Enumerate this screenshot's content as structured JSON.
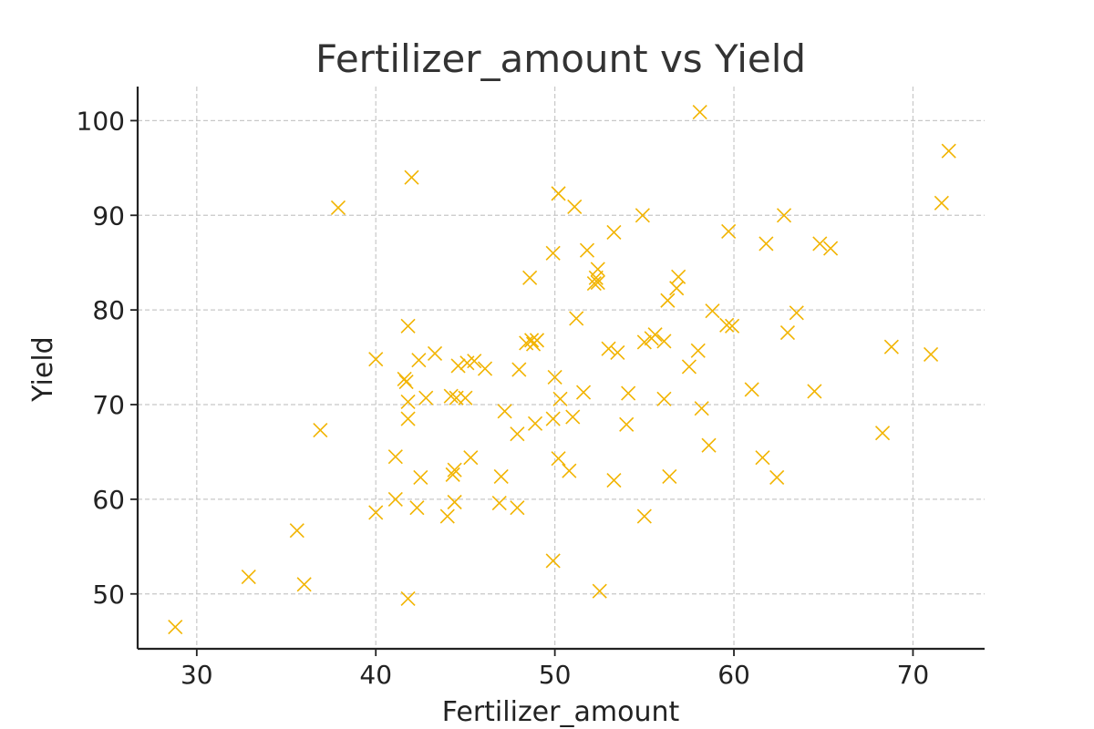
{
  "chart_data": {
    "type": "scatter",
    "title": "Fertilizer_amount vs Yield",
    "xlabel": "Fertilizer_amount",
    "ylabel": "Yield",
    "xlim": [
      26.7,
      74.0
    ],
    "ylim": [
      44.2,
      103.6
    ],
    "xticks": [
      30,
      40,
      50,
      60,
      70
    ],
    "yticks": [
      50,
      60,
      70,
      80,
      90,
      100
    ],
    "grid": true,
    "marker": "x",
    "color": "#f2b400",
    "series": [
      {
        "points": [
          [
            28.8,
            46.5
          ],
          [
            32.9,
            51.8
          ],
          [
            35.6,
            56.7
          ],
          [
            36.0,
            51.0
          ],
          [
            36.9,
            67.3
          ],
          [
            37.9,
            90.8
          ],
          [
            40.0,
            58.6
          ],
          [
            40.0,
            74.8
          ],
          [
            41.1,
            64.5
          ],
          [
            41.1,
            60.0
          ],
          [
            41.6,
            72.7
          ],
          [
            41.7,
            72.4
          ],
          [
            41.8,
            70.3
          ],
          [
            41.8,
            68.5
          ],
          [
            41.8,
            78.3
          ],
          [
            41.8,
            49.5
          ],
          [
            42.0,
            94.0
          ],
          [
            42.3,
            59.1
          ],
          [
            42.4,
            74.7
          ],
          [
            42.5,
            62.3
          ],
          [
            42.8,
            70.7
          ],
          [
            43.3,
            75.4
          ],
          [
            44.0,
            58.2
          ],
          [
            44.2,
            70.9
          ],
          [
            44.3,
            62.6
          ],
          [
            44.4,
            63.1
          ],
          [
            44.5,
            70.7
          ],
          [
            44.4,
            59.7
          ],
          [
            44.6,
            74.1
          ],
          [
            45.0,
            70.7
          ],
          [
            45.1,
            74.4
          ],
          [
            45.3,
            64.4
          ],
          [
            45.5,
            74.6
          ],
          [
            46.1,
            73.8
          ],
          [
            46.9,
            59.6
          ],
          [
            47.0,
            62.4
          ],
          [
            47.2,
            69.3
          ],
          [
            47.9,
            66.9
          ],
          [
            47.9,
            59.1
          ],
          [
            48.0,
            73.7
          ],
          [
            48.4,
            76.5
          ],
          [
            48.6,
            83.4
          ],
          [
            48.7,
            76.8
          ],
          [
            48.8,
            76.4
          ],
          [
            48.9,
            68.0
          ],
          [
            49.0,
            76.8
          ],
          [
            49.9,
            53.5
          ],
          [
            49.9,
            68.5
          ],
          [
            49.9,
            86.0
          ],
          [
            50.0,
            72.9
          ],
          [
            50.2,
            92.3
          ],
          [
            50.2,
            64.3
          ],
          [
            50.3,
            70.6
          ],
          [
            50.8,
            63.0
          ],
          [
            51.0,
            68.7
          ],
          [
            51.1,
            90.9
          ],
          [
            51.2,
            79.1
          ],
          [
            51.6,
            71.3
          ],
          [
            51.8,
            86.3
          ],
          [
            52.2,
            82.8
          ],
          [
            52.3,
            83.4
          ],
          [
            52.4,
            84.3
          ],
          [
            52.5,
            50.3
          ],
          [
            52.4,
            82.9
          ],
          [
            53.0,
            75.9
          ],
          [
            53.3,
            62.0
          ],
          [
            53.3,
            88.2
          ],
          [
            53.5,
            75.5
          ],
          [
            54.0,
            67.9
          ],
          [
            54.1,
            71.2
          ],
          [
            54.9,
            90.0
          ],
          [
            55.0,
            76.6
          ],
          [
            55.0,
            58.2
          ],
          [
            55.4,
            77.0
          ],
          [
            55.6,
            77.4
          ],
          [
            56.1,
            76.7
          ],
          [
            56.1,
            70.6
          ],
          [
            56.3,
            81.0
          ],
          [
            56.4,
            62.4
          ],
          [
            56.8,
            82.3
          ],
          [
            56.9,
            83.5
          ],
          [
            57.5,
            74.0
          ],
          [
            58.0,
            75.7
          ],
          [
            58.1,
            100.9
          ],
          [
            58.2,
            69.6
          ],
          [
            58.6,
            65.7
          ],
          [
            58.8,
            79.9
          ],
          [
            59.6,
            78.4
          ],
          [
            59.7,
            88.3
          ],
          [
            59.9,
            78.3
          ],
          [
            61.0,
            71.6
          ],
          [
            61.6,
            64.4
          ],
          [
            61.8,
            87.0
          ],
          [
            62.4,
            62.3
          ],
          [
            62.8,
            90.0
          ],
          [
            63.0,
            77.6
          ],
          [
            63.5,
            79.7
          ],
          [
            64.5,
            71.4
          ],
          [
            64.8,
            87.0
          ],
          [
            65.4,
            86.5
          ],
          [
            68.3,
            67.0
          ],
          [
            68.8,
            76.1
          ],
          [
            71.0,
            75.3
          ],
          [
            71.6,
            91.3
          ],
          [
            72.0,
            96.8
          ]
        ]
      }
    ]
  }
}
